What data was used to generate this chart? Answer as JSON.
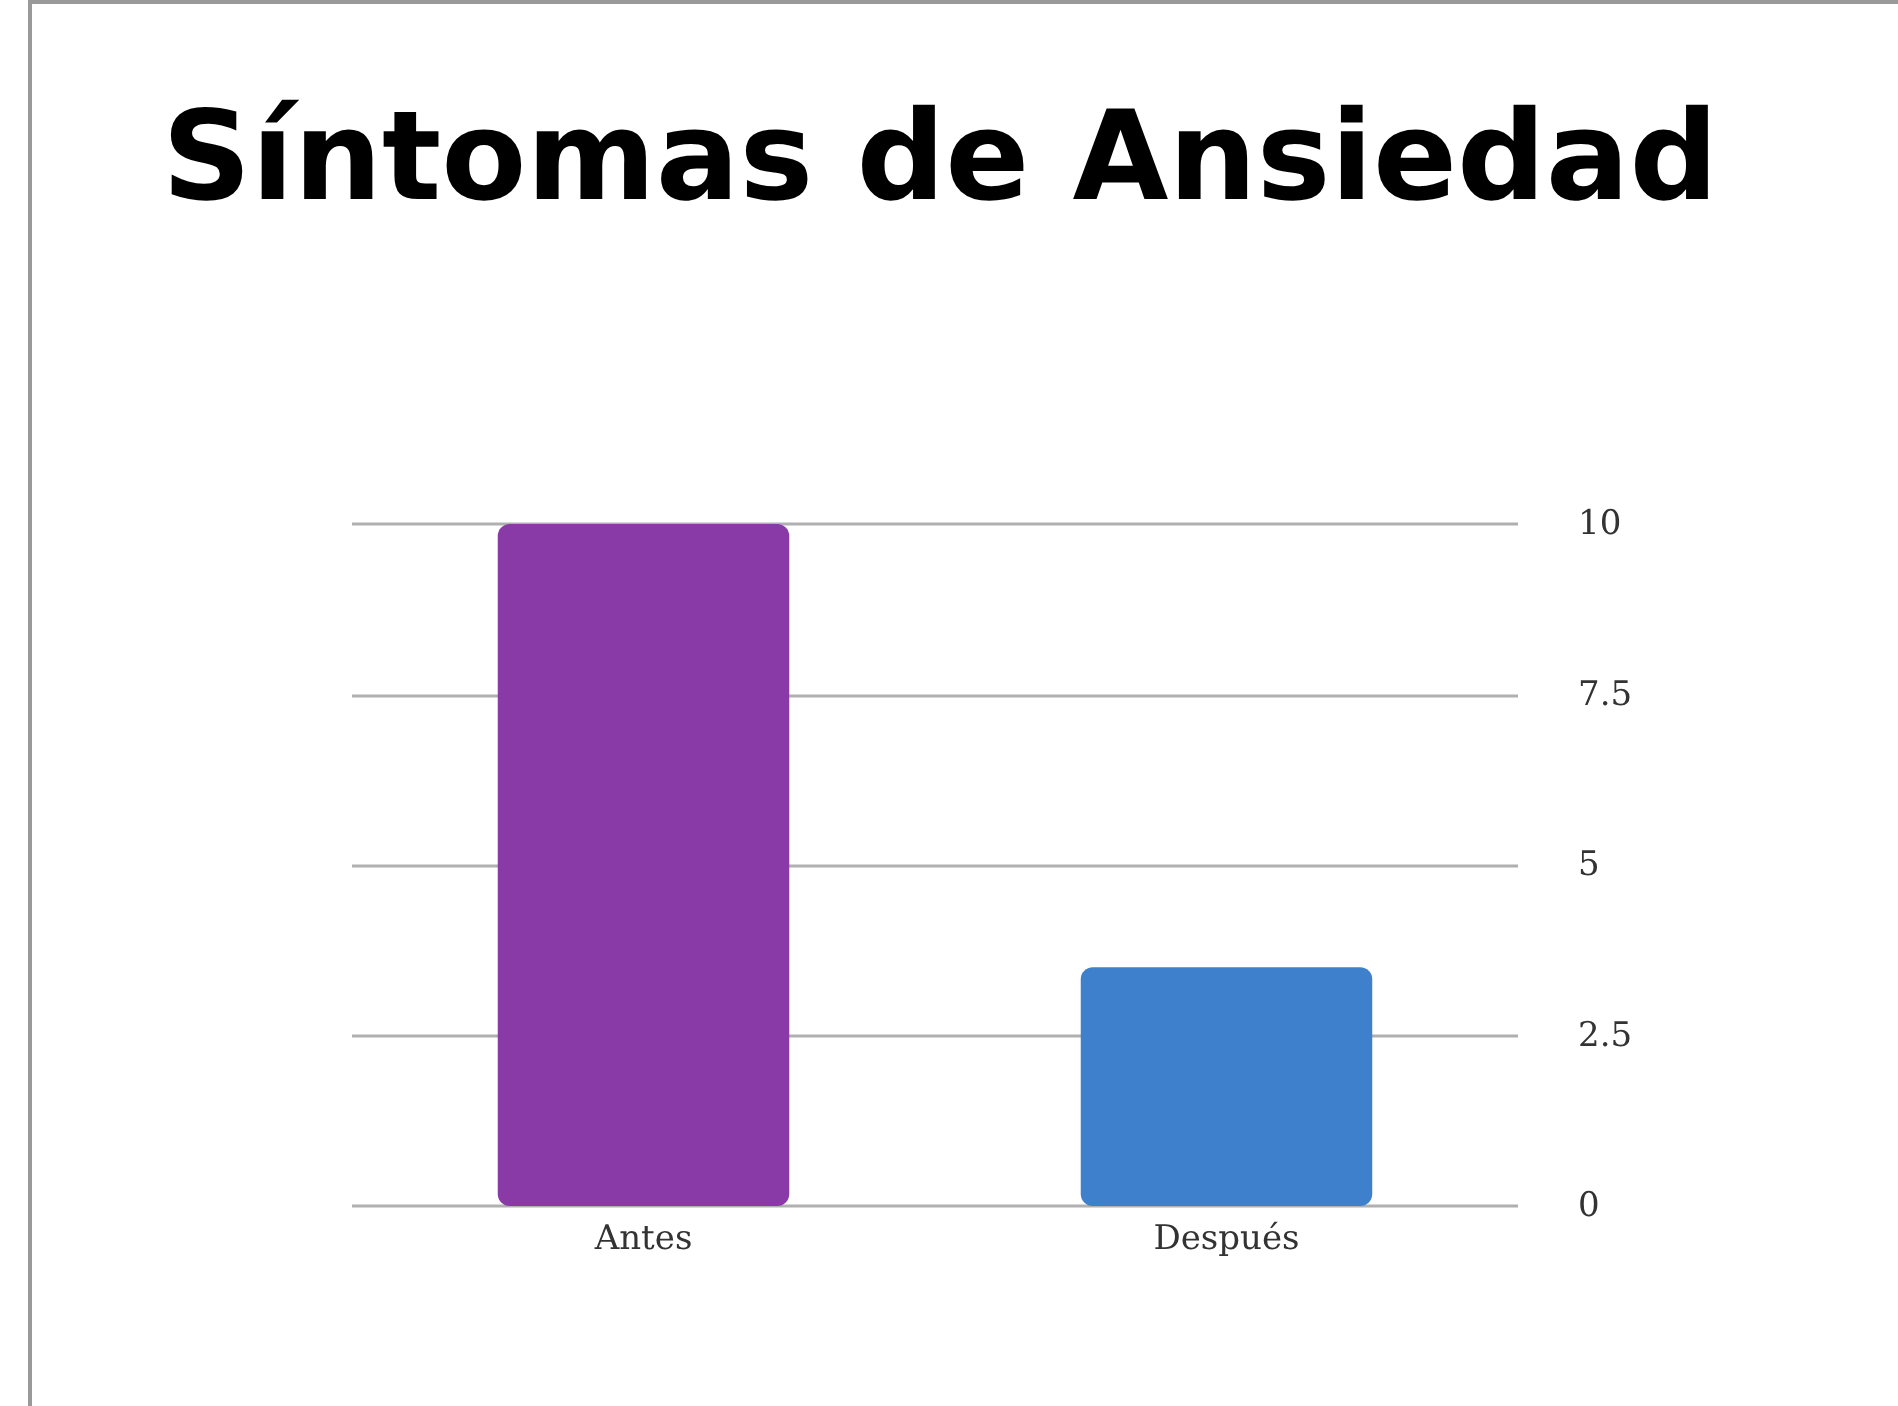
{
  "chart_data": {
    "type": "bar",
    "title": "Síntomas de Ansiedad",
    "categories": [
      "Antes",
      "Después"
    ],
    "colors": [
      "#8a3aa6",
      "#3f80cc"
    ],
    "values": [
      10,
      3.5
    ],
    "ylim": [
      0,
      10
    ],
    "yticks": [
      0,
      2.5,
      5,
      7.5,
      10
    ],
    "grid": "y"
  }
}
